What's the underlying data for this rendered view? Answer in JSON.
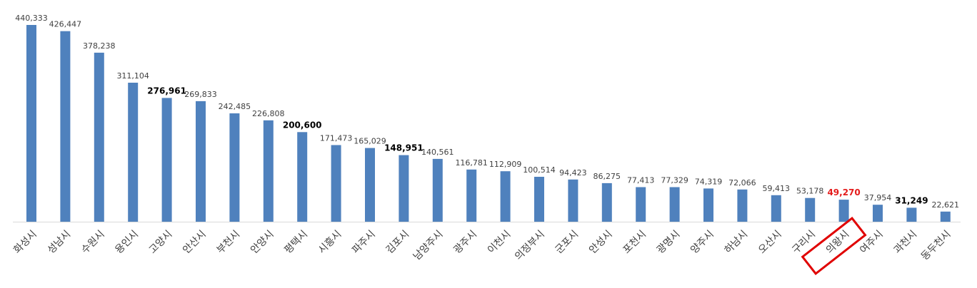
{
  "chart_data": {
    "type": "bar",
    "title": "",
    "xlabel": "",
    "ylabel": "",
    "ylim": [
      0,
      440333
    ],
    "categories": [
      "화성시",
      "성남시",
      "수원시",
      "용인시",
      "고양시",
      "안산시",
      "부천시",
      "안양시",
      "평택시",
      "시흥시",
      "파주시",
      "김포시",
      "남양주시",
      "광주시",
      "이천시",
      "의정부시",
      "군포시",
      "안성시",
      "포천시",
      "광명시",
      "양주시",
      "하남시",
      "오산시",
      "구리시",
      "의왕시",
      "여주시",
      "과천시",
      "동두천시"
    ],
    "values": [
      440333,
      426447,
      378238,
      311104,
      276961,
      269833,
      242485,
      226808,
      200600,
      171473,
      165029,
      148951,
      140561,
      116781,
      112909,
      100514,
      94423,
      86275,
      77413,
      77329,
      74319,
      72066,
      59413,
      53178,
      49270,
      37954,
      31249,
      22621
    ],
    "value_labels": [
      "440,333",
      "426,447",
      "378,238",
      "311,104",
      "276,961",
      "269,833",
      "242,485",
      "226,808",
      "200,600",
      "171,473",
      "165,029",
      "148,951",
      "140,561",
      "116,781",
      "112,909",
      "100,514",
      "94,423",
      "86,275",
      "77,413",
      "77,329",
      "74,319",
      "72,066",
      "59,413",
      "53,178",
      "49,270",
      "37,954",
      "31,249",
      "22,621"
    ],
    "bold_labels": [
      "276,961",
      "200,600",
      "148,951",
      "31,249"
    ],
    "highlighted_category": "의왕시",
    "colors": {
      "bar": "#4f81bd",
      "highlight_text": "#e41b1b",
      "highlight_box": "#e00000"
    },
    "grid": false,
    "legend": "none"
  }
}
